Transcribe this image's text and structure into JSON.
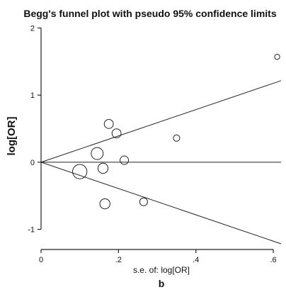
{
  "chart_data": {
    "type": "scatter",
    "title": "Begg's funnel plot with pseudo 95% confidence limits",
    "xlabel": "s.e. of: log[OR]",
    "ylabel": "log[OR]",
    "panel_label": "b",
    "xlim": [
      0,
      0.62
    ],
    "ylim": [
      -1.3,
      2.1
    ],
    "x_ticks": [
      0,
      0.2,
      0.4,
      0.6
    ],
    "x_tick_labels": [
      "0",
      ".2",
      ".4",
      ".6"
    ],
    "y_ticks": [
      -1,
      0,
      1,
      2
    ],
    "y_tick_labels": [
      "-1",
      "0",
      "1",
      "2"
    ],
    "pooled_estimate": 0,
    "confidence_limit_z": 1.96,
    "grid": false,
    "points": [
      {
        "x": 0.1,
        "y": -0.14,
        "size": 10
      },
      {
        "x": 0.145,
        "y": 0.13,
        "size": 7
      },
      {
        "x": 0.16,
        "y": -0.09,
        "size": 5
      },
      {
        "x": 0.165,
        "y": -0.62,
        "size": 5
      },
      {
        "x": 0.175,
        "y": 0.57,
        "size": 4
      },
      {
        "x": 0.195,
        "y": 0.43,
        "size": 4
      },
      {
        "x": 0.215,
        "y": 0.03,
        "size": 3.5
      },
      {
        "x": 0.265,
        "y": -0.59,
        "size": 3
      },
      {
        "x": 0.35,
        "y": 0.36,
        "size": 2
      },
      {
        "x": 0.61,
        "y": 1.57,
        "size": 1.3
      }
    ]
  }
}
